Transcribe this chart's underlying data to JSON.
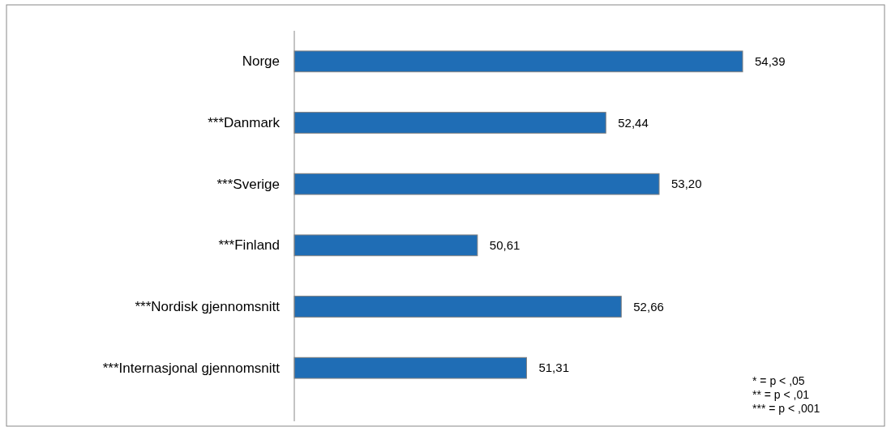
{
  "chart_data": {
    "type": "bar",
    "orientation": "horizontal",
    "categories": [
      "Norge",
      "***Danmark",
      "***Sverige",
      "***Finland",
      "***Nordisk gjennomsnitt",
      "***Internasjonal gjennomsnitt"
    ],
    "values": [
      54.39,
      52.44,
      53.2,
      50.61,
      52.66,
      51.31
    ],
    "value_labels": [
      "54,39",
      "52,44",
      "53,20",
      "50,61",
      "52,66",
      "51,31"
    ],
    "color": "#1f6db5",
    "xlim": [
      48,
      54.39
    ],
    "tick_labels": "y",
    "annotations": [
      "* = p < ,05",
      "** = p < ,01",
      "*** = p < ,001"
    ]
  }
}
